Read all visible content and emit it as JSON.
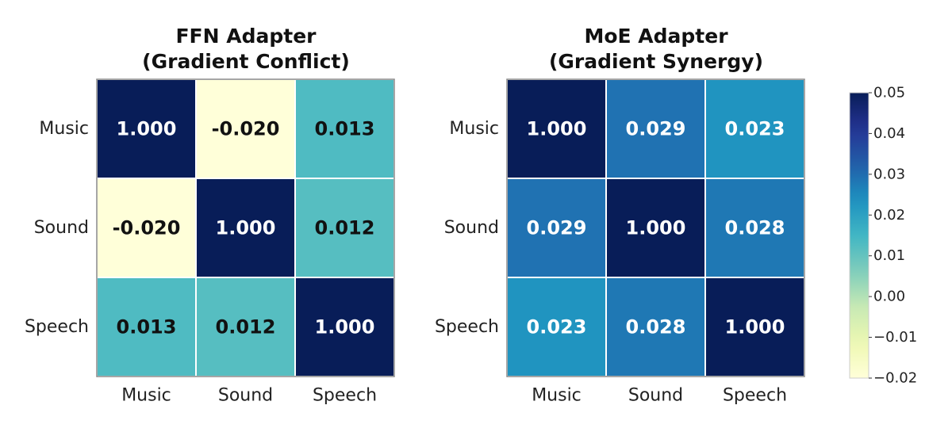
{
  "chart_data": [
    {
      "type": "heatmap",
      "title": "FFN Adapter",
      "subtitle": "(Gradient Conflict)",
      "x_categories": [
        "Music",
        "Sound",
        "Speech"
      ],
      "y_categories": [
        "Music",
        "Sound",
        "Speech"
      ],
      "values": [
        [
          1.0,
          -0.02,
          0.013
        ],
        [
          -0.02,
          1.0,
          0.012
        ],
        [
          0.013,
          0.012,
          1.0
        ]
      ],
      "value_labels": [
        [
          "1.000",
          "-0.020",
          "0.013"
        ],
        [
          "-0.020",
          "1.000",
          "0.012"
        ],
        [
          "0.013",
          "0.012",
          "1.000"
        ]
      ]
    },
    {
      "type": "heatmap",
      "title": "MoE Adapter",
      "subtitle": "(Gradient Synergy)",
      "x_categories": [
        "Music",
        "Sound",
        "Speech"
      ],
      "y_categories": [
        "Music",
        "Sound",
        "Speech"
      ],
      "values": [
        [
          1.0,
          0.029,
          0.023
        ],
        [
          0.029,
          1.0,
          0.028
        ],
        [
          0.023,
          0.028,
          1.0
        ]
      ],
      "value_labels": [
        [
          "1.000",
          "0.029",
          "0.023"
        ],
        [
          "0.029",
          "1.000",
          "0.028"
        ],
        [
          "0.023",
          "0.028",
          "1.000"
        ]
      ]
    }
  ],
  "colorbar": {
    "colormap": "YlGnBu",
    "range": [
      -0.02,
      0.05
    ],
    "ticks": [
      "0.05",
      "0.04",
      "0.03",
      "0.02",
      "0.01",
      "0.00",
      "−0.01",
      "−0.02"
    ],
    "tick_values": [
      0.05,
      0.04,
      0.03,
      0.02,
      0.01,
      0.0,
      -0.01,
      -0.02
    ]
  },
  "colors": {
    "ylgnbu": [
      "#ffffd9",
      "#edf8b1",
      "#c7e9b4",
      "#7fcdbb",
      "#41b6c4",
      "#1d91c0",
      "#225ea8",
      "#253494",
      "#081d58"
    ],
    "dark_text": "#111111",
    "light_text": "#ffffff",
    "cell_border": "#ffffff",
    "frame": "#888888"
  }
}
